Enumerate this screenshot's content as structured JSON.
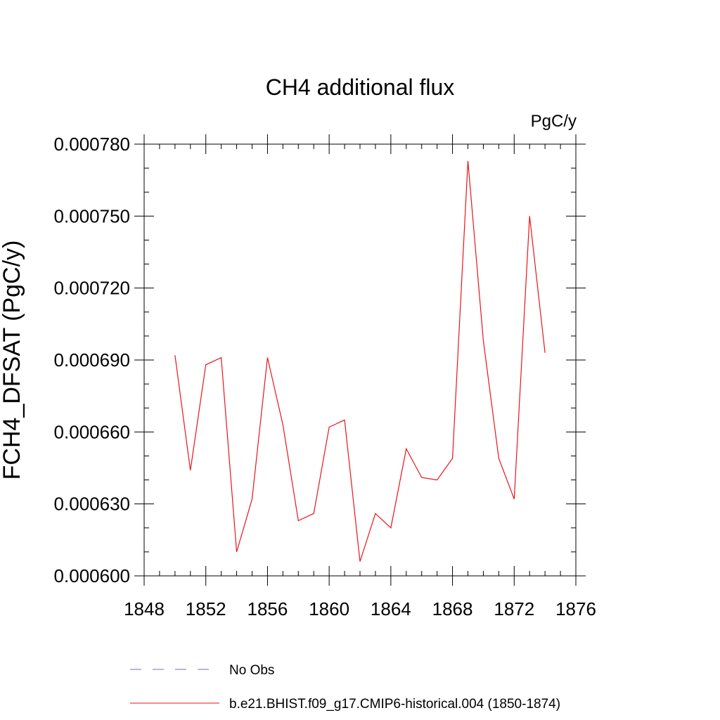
{
  "chart_data": {
    "type": "line",
    "title": "CH4 additional flux",
    "units": "PgC/y",
    "ylabel": "FCH4_DFSAT  (PgC/y)",
    "xlabel": "",
    "xlim": [
      1848,
      1876
    ],
    "ylim": [
      0.0006,
      0.00078
    ],
    "x_major_ticks": [
      1848,
      1852,
      1856,
      1860,
      1864,
      1868,
      1872,
      1876
    ],
    "x_minor_step": 1,
    "y_major_ticks": [
      0.0006,
      0.00063,
      0.00066,
      0.00069,
      0.00072,
      0.00075,
      0.00078
    ],
    "y_tick_labels": [
      "0.000600",
      "0.000630",
      "0.000660",
      "0.000690",
      "0.000720",
      "0.000750",
      "0.000780"
    ],
    "y_minor_step": 1e-05,
    "series": [
      {
        "name": "b.e21.BHIST.f09_g17.CMIP6-historical.004 (1850-1874)",
        "color": "#e8141b",
        "style": "solid",
        "x": [
          1850,
          1851,
          1852,
          1853,
          1854,
          1855,
          1856,
          1857,
          1858,
          1859,
          1860,
          1861,
          1862,
          1863,
          1864,
          1865,
          1866,
          1867,
          1868,
          1869,
          1870,
          1871,
          1872,
          1873,
          1874
        ],
        "y": [
          0.000692,
          0.000644,
          0.000688,
          0.000691,
          0.00061,
          0.000632,
          0.000691,
          0.000663,
          0.000623,
          0.000626,
          0.000662,
          0.000665,
          0.000606,
          0.000626,
          0.00062,
          0.000653,
          0.000641,
          0.00064,
          0.000649,
          0.000773,
          0.000698,
          0.000649,
          0.000632,
          0.00075,
          0.000693
        ]
      }
    ],
    "legend": {
      "placement": "bottom",
      "entries": [
        {
          "label": "No Obs",
          "color": "#7b6bb0",
          "style": "dashed"
        },
        {
          "label": "b.e21.BHIST.f09_g17.CMIP6-historical.004 (1850-1874)",
          "color": "#e8141b",
          "style": "solid"
        }
      ]
    }
  }
}
